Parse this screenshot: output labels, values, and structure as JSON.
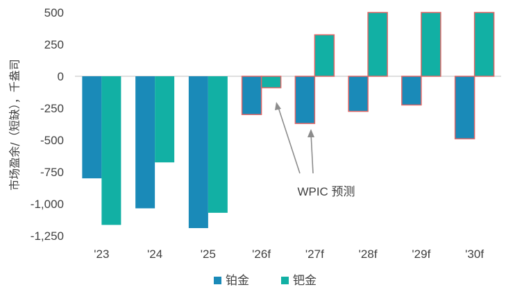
{
  "chart_data": {
    "type": "bar",
    "categories": [
      "'23",
      "'24",
      "'25",
      "'26f",
      "'27f",
      "'28f",
      "'29f",
      "'30f"
    ],
    "series": [
      {
        "name": "铂金",
        "color": "#1a8ab8",
        "values": [
          -800,
          -1035,
          -1190,
          -300,
          -370,
          -275,
          -225,
          -490
        ]
      },
      {
        "name": "钯金",
        "color": "#12b0a4",
        "values": [
          -1165,
          -675,
          -1070,
          -90,
          325,
          500,
          500,
          500
        ]
      }
    ],
    "forecast_outline_color": "#e06666",
    "ylim": [
      -1250,
      500
    ],
    "yticks": [
      500,
      250,
      0,
      -250,
      -500,
      -750,
      -1000,
      -1250
    ],
    "ytick_labels": [
      "500",
      "250",
      "0",
      "-250",
      "-500",
      "-750",
      "-1,000",
      "-1,250"
    ],
    "ylabel": "市场盈余/（短缺），千盎司",
    "xlabel": "",
    "legend_position": "bottom",
    "grid": false,
    "annotation": {
      "text": "WPIC 预测"
    }
  }
}
